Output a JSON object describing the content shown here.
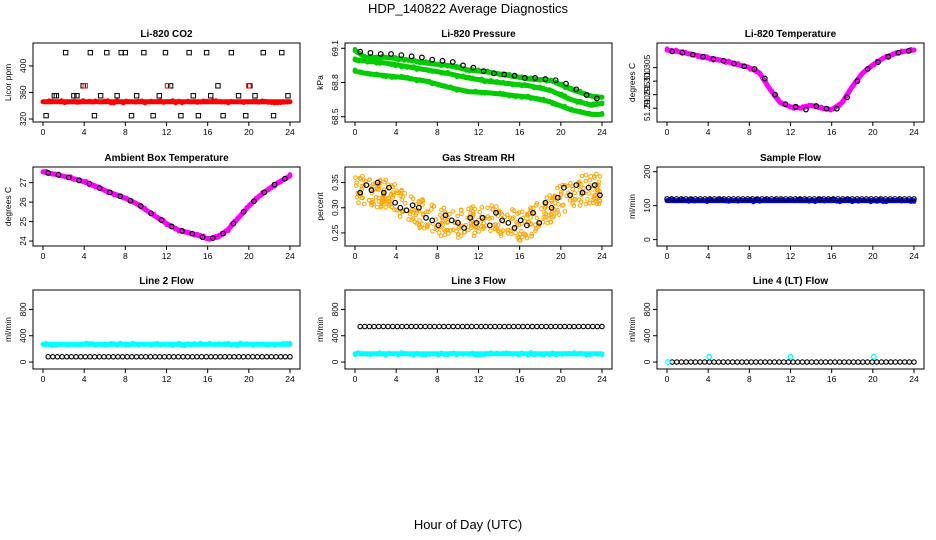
{
  "figure": {
    "title": "HDP_140822  Average Diagnostics",
    "xlabel": "Hour of Day (UTC)",
    "colors": {
      "black": "#000000",
      "red": "#ff0000",
      "green": "#00cc00",
      "magenta": "#ff00ff",
      "orange": "#ffa500",
      "blue": "#0000ff",
      "cyan": "#00ffff"
    }
  },
  "chart_data": [
    {
      "type": "scatter",
      "title": "Li-820 CO2",
      "ylabel": "Licor ppm",
      "xlim": [
        0,
        24
      ],
      "ylim": [
        320,
        430
      ],
      "xticks": [
        "0",
        "4",
        "8",
        "12",
        "16",
        "20",
        "24"
      ],
      "yticks": [
        "320",
        "360",
        "400"
      ],
      "series": [
        {
          "name": "co2-line",
          "color": "red",
          "style": "band",
          "x": [
            0,
            4,
            8,
            12,
            16,
            20,
            24
          ],
          "y": [
            346,
            346,
            346,
            346,
            346,
            346,
            346
          ]
        },
        {
          "name": "co2-samples",
          "color": "black",
          "style": "square",
          "x": [
            0.3,
            1.1,
            1.3,
            2.2,
            3.0,
            3.3,
            3.9,
            4.6,
            5.0,
            5.6,
            6.2,
            7.2,
            7.6,
            8.0,
            8.6,
            9.1,
            9.8,
            10.7,
            11.3,
            11.9,
            12.4,
            13.4,
            14.2,
            14.6,
            15.1,
            15.9,
            16.3,
            17.0,
            17.5,
            18.3,
            19.0,
            19.7,
            20.1,
            20.6,
            21.4,
            22.4,
            23.2,
            23.8
          ],
          "y": [
            325,
            355,
            355,
            420,
            355,
            355,
            370,
            420,
            325,
            355,
            420,
            355,
            420,
            420,
            325,
            355,
            420,
            325,
            355,
            420,
            370,
            325,
            420,
            355,
            325,
            420,
            355,
            370,
            325,
            420,
            355,
            325,
            370,
            355,
            420,
            325,
            420,
            355
          ]
        },
        {
          "name": "co2-flags",
          "color": "red",
          "style": "square",
          "x": [
            4.1,
            12.1,
            20.0
          ],
          "y": [
            370,
            370,
            370
          ]
        }
      ]
    },
    {
      "type": "scatter",
      "title": "Li-820 Pressure",
      "ylabel": "kPa",
      "xlim": [
        0,
        24
      ],
      "ylim": [
        68.48,
        69.12
      ],
      "xticks": [
        "0",
        "4",
        "8",
        "12",
        "16",
        "20",
        "24"
      ],
      "yticks": [
        "68.5",
        "68.8",
        "69.1"
      ],
      "series": [
        {
          "name": "pressure-upper",
          "color": "green",
          "style": "band",
          "x": [
            0,
            1,
            3,
            5,
            7,
            9,
            11,
            13,
            15,
            17,
            19,
            21,
            23,
            24
          ],
          "y": [
            69.08,
            69.02,
            69.02,
            69.0,
            68.97,
            68.95,
            68.91,
            68.89,
            68.86,
            68.83,
            68.82,
            68.74,
            68.68,
            68.67
          ]
        },
        {
          "name": "pressure-middle",
          "color": "green",
          "style": "band",
          "x": [
            0,
            1,
            3,
            5,
            7,
            9,
            11,
            13,
            15,
            17,
            19,
            21,
            23,
            24
          ],
          "y": [
            69.0,
            68.99,
            68.97,
            68.94,
            68.91,
            68.88,
            68.84,
            68.81,
            68.79,
            68.77,
            68.73,
            68.65,
            68.6,
            68.62
          ]
        },
        {
          "name": "pressure-lower",
          "color": "green",
          "style": "band",
          "x": [
            0,
            1,
            3,
            5,
            7,
            9,
            11,
            13,
            15,
            17,
            19,
            21,
            23,
            24
          ],
          "y": [
            68.9,
            68.88,
            68.86,
            68.84,
            68.81,
            68.76,
            68.72,
            68.71,
            68.69,
            68.67,
            68.63,
            68.56,
            68.52,
            68.52
          ]
        },
        {
          "name": "pressure-hourly",
          "color": "black",
          "style": "circle",
          "x": [
            0.5,
            1.5,
            2.5,
            3.5,
            4.5,
            5.5,
            6.5,
            7.5,
            8.5,
            9.5,
            10.5,
            11.5,
            12.5,
            13.5,
            14.5,
            15.5,
            16.5,
            17.5,
            18.5,
            19.5,
            20.5,
            21.5,
            22.5,
            23.5
          ],
          "y": [
            69.07,
            69.06,
            69.05,
            69.05,
            69.04,
            69.03,
            69.02,
            69.0,
            68.99,
            68.98,
            68.95,
            68.93,
            68.9,
            68.88,
            68.87,
            68.86,
            68.84,
            68.84,
            68.83,
            68.82,
            68.79,
            68.74,
            68.69,
            68.66
          ]
        }
      ]
    },
    {
      "type": "scatter",
      "title": "Li-820 Temperature",
      "ylabel": "degrees C",
      "xlim": [
        0,
        24
      ],
      "ylim": [
        51.286,
        51.313
      ],
      "xticks": [
        "0",
        "4",
        "8",
        "12",
        "16",
        "20",
        "24"
      ],
      "yticks": [
        "51.290",
        "51.295",
        "51.300",
        "51.305"
      ],
      "series": [
        {
          "name": "licor-temp",
          "color": "magenta",
          "style": "band",
          "x": [
            0,
            1,
            2,
            3,
            4,
            5,
            6,
            7,
            8,
            9,
            10,
            11,
            12,
            13,
            14,
            15,
            16,
            17,
            18,
            19,
            20,
            21,
            22,
            23,
            24
          ],
          "y": [
            51.3115,
            51.311,
            51.3102,
            51.3095,
            51.3085,
            51.308,
            51.307,
            51.306,
            51.305,
            51.303,
            51.297,
            51.292,
            51.2905,
            51.29,
            51.291,
            51.29,
            51.2895,
            51.292,
            51.298,
            51.303,
            51.306,
            51.3085,
            51.31,
            51.311,
            51.3115
          ]
        },
        {
          "name": "licor-temp-hourly",
          "color": "black",
          "style": "circle",
          "x": [
            0.5,
            1.5,
            2.5,
            3.5,
            4.5,
            5.5,
            6.5,
            7.5,
            8.5,
            9.5,
            10.5,
            11.5,
            12.5,
            13.5,
            14.5,
            15.5,
            16.5,
            17.5,
            18.5,
            19.5,
            20.5,
            21.5,
            22.5,
            23.5
          ],
          "y": [
            51.311,
            51.3105,
            51.3098,
            51.309,
            51.3082,
            51.3075,
            51.3065,
            51.3055,
            51.3045,
            51.301,
            51.295,
            51.2915,
            51.2905,
            51.2895,
            51.2908,
            51.2898,
            51.2898,
            51.294,
            51.3,
            51.3045,
            51.307,
            51.309,
            51.3105,
            51.3112
          ]
        }
      ]
    },
    {
      "type": "scatter",
      "title": "Ambient Box Temperature",
      "ylabel": "degrees C",
      "xlim": [
        0,
        24
      ],
      "ylim": [
        23.9,
        27.65
      ],
      "xticks": [
        "0",
        "4",
        "8",
        "12",
        "16",
        "20",
        "24"
      ],
      "yticks": [
        "24",
        "25",
        "26",
        "27"
      ],
      "series": [
        {
          "name": "box-temp",
          "color": "magenta",
          "style": "band",
          "x": [
            0,
            1,
            2,
            3,
            4,
            5,
            6,
            7,
            8,
            9,
            10,
            11,
            12,
            13,
            14,
            15,
            16,
            17,
            18,
            19,
            20,
            21,
            22,
            23,
            24
          ],
          "y": [
            27.55,
            27.45,
            27.33,
            27.2,
            27.05,
            26.85,
            26.6,
            26.4,
            26.2,
            25.95,
            25.6,
            25.25,
            24.9,
            24.6,
            24.45,
            24.3,
            24.12,
            24.2,
            24.6,
            25.2,
            25.8,
            26.3,
            26.7,
            27.05,
            27.35
          ]
        },
        {
          "name": "box-temp-hourly",
          "color": "black",
          "style": "circle",
          "x": [
            0.5,
            1.5,
            2.5,
            3.5,
            4.5,
            5.5,
            6.5,
            7.5,
            8.5,
            9.5,
            10.5,
            11.5,
            12.5,
            13.5,
            14.5,
            15.5,
            16.5,
            17.5,
            18.5,
            19.5,
            20.5,
            21.5,
            22.5,
            23.5
          ],
          "y": [
            27.5,
            27.4,
            27.27,
            27.12,
            26.95,
            26.72,
            26.5,
            26.3,
            26.07,
            25.8,
            25.42,
            25.08,
            24.75,
            24.52,
            24.38,
            24.2,
            24.15,
            24.38,
            24.9,
            25.5,
            26.05,
            26.5,
            26.9,
            27.2
          ]
        }
      ]
    },
    {
      "type": "scatter",
      "title": "Gas Stream RH",
      "ylabel": "percent",
      "xlim": [
        0,
        24
      ],
      "ylim": [
        0.23,
        0.375
      ],
      "xticks": [
        "0",
        "4",
        "8",
        "12",
        "16",
        "20",
        "24"
      ],
      "yticks": [
        "0.25",
        "0.30",
        "0.35"
      ],
      "series": [
        {
          "name": "rh-cloud",
          "color": "orange",
          "style": "cloud",
          "x": [
            0,
            1,
            2,
            3,
            4,
            5,
            6,
            7,
            8,
            9,
            10,
            11,
            12,
            13,
            14,
            15,
            16,
            17,
            18,
            19,
            20,
            21,
            22,
            23,
            24
          ],
          "y": [
            0.34,
            0.335,
            0.33,
            0.33,
            0.315,
            0.3,
            0.29,
            0.285,
            0.275,
            0.27,
            0.27,
            0.272,
            0.275,
            0.28,
            0.275,
            0.27,
            0.265,
            0.27,
            0.285,
            0.3,
            0.315,
            0.33,
            0.335,
            0.34,
            0.335
          ]
        },
        {
          "name": "rh-hourly",
          "color": "black",
          "style": "circle",
          "x": [
            0.5,
            1.1,
            1.6,
            2.2,
            2.8,
            3.3,
            3.9,
            4.4,
            5.0,
            5.6,
            6.2,
            6.9,
            7.5,
            8.1,
            8.8,
            9.4,
            10.0,
            10.6,
            11.2,
            11.8,
            12.4,
            13.1,
            13.7,
            14.3,
            14.9,
            15.5,
            16.1,
            16.7,
            17.3,
            17.9,
            18.5,
            19.1,
            19.7,
            20.3,
            20.9,
            21.5,
            22.1,
            22.7,
            23.3,
            23.8
          ],
          "y": [
            0.33,
            0.345,
            0.335,
            0.35,
            0.33,
            0.34,
            0.31,
            0.3,
            0.295,
            0.305,
            0.3,
            0.28,
            0.275,
            0.265,
            0.285,
            0.275,
            0.27,
            0.26,
            0.28,
            0.27,
            0.28,
            0.265,
            0.29,
            0.275,
            0.27,
            0.26,
            0.275,
            0.265,
            0.29,
            0.27,
            0.31,
            0.3,
            0.32,
            0.34,
            0.325,
            0.345,
            0.33,
            0.34,
            0.345,
            0.325
          ]
        }
      ]
    },
    {
      "type": "scatter",
      "title": "Sample Flow",
      "ylabel": "ml/min",
      "xlim": [
        0,
        24
      ],
      "ylim": [
        -10,
        205
      ],
      "xticks": [
        "0",
        "4",
        "8",
        "12",
        "16",
        "20",
        "24"
      ],
      "yticks": [
        "0",
        "100",
        "200"
      ],
      "series": [
        {
          "name": "sample-flow",
          "color": "blue",
          "style": "band",
          "x": [
            0,
            4,
            8,
            12,
            16,
            20,
            24
          ],
          "y": [
            115,
            115,
            115,
            115,
            115,
            115,
            115
          ]
        },
        {
          "name": "sample-flow-hourly",
          "color": "black",
          "style": "circle-dense",
          "x": [
            0,
            4,
            8,
            12,
            16,
            20,
            24
          ],
          "y": [
            120,
            120,
            120,
            120,
            120,
            120,
            120
          ]
        }
      ]
    },
    {
      "type": "scatter",
      "title": "Line 2 Flow",
      "ylabel": "ml/min",
      "xlim": [
        0,
        24
      ],
      "ylim": [
        -60,
        1050
      ],
      "xticks": [
        "0",
        "4",
        "8",
        "12",
        "16",
        "20",
        "24"
      ],
      "yticks": [
        "0",
        "400",
        "800"
      ],
      "series": [
        {
          "name": "line2-cyan",
          "color": "cyan",
          "style": "band",
          "x": [
            0,
            4,
            8,
            12,
            16,
            20,
            24
          ],
          "y": [
            270,
            270,
            270,
            270,
            270,
            270,
            270
          ]
        },
        {
          "name": "line2-black",
          "color": "black",
          "style": "circle-dense",
          "x": [
            0.5,
            4,
            8,
            12,
            16,
            20,
            24
          ],
          "y": [
            80,
            80,
            80,
            80,
            80,
            80,
            80
          ]
        }
      ]
    },
    {
      "type": "scatter",
      "title": "Line 3 Flow",
      "ylabel": "ml/min",
      "xlim": [
        0,
        24
      ],
      "ylim": [
        -60,
        1050
      ],
      "xticks": [
        "0",
        "4",
        "8",
        "12",
        "16",
        "20",
        "24"
      ],
      "yticks": [
        "0",
        "400",
        "800"
      ],
      "series": [
        {
          "name": "line3-black",
          "color": "black",
          "style": "circle-dense",
          "x": [
            0.5,
            4,
            8,
            12,
            16,
            20,
            24
          ],
          "y": [
            540,
            540,
            540,
            540,
            540,
            540,
            540
          ]
        },
        {
          "name": "line3-cyan",
          "color": "cyan",
          "style": "band",
          "x": [
            0,
            4,
            8,
            12,
            16,
            20,
            24
          ],
          "y": [
            125,
            125,
            125,
            125,
            125,
            125,
            125
          ]
        }
      ]
    },
    {
      "type": "scatter",
      "title": "Line 4 (LT) Flow",
      "ylabel": "ml/min",
      "xlim": [
        0,
        24
      ],
      "ylim": [
        -60,
        1050
      ],
      "xticks": [
        "0",
        "4",
        "8",
        "12",
        "16",
        "20",
        "24"
      ],
      "yticks": [
        "0",
        "400",
        "800"
      ],
      "series": [
        {
          "name": "line4-black",
          "color": "black",
          "style": "circle-dense",
          "x": [
            0.5,
            4,
            8,
            12,
            16,
            20,
            24
          ],
          "y": [
            0,
            0,
            0,
            0,
            0,
            0,
            0
          ]
        },
        {
          "name": "line4-cyan",
          "color": "cyan",
          "style": "circle",
          "x": [
            0.1,
            4.1,
            12.0,
            20.1
          ],
          "y": [
            0,
            80,
            80,
            80
          ]
        }
      ]
    }
  ]
}
